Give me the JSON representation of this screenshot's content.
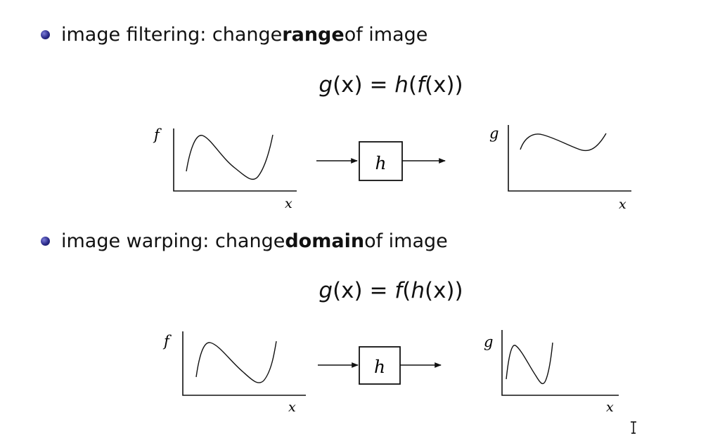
{
  "sections": [
    {
      "bullet": {
        "lead": "image filtering: change ",
        "bold": "range",
        "tail": " of image"
      },
      "equation": {
        "lhs_fn": "g",
        "lhs_arg": "(x)",
        "eq": " = ",
        "outer": "h",
        "open1": "(",
        "inner": "f",
        "open2": "(x))"
      },
      "input_plot": {
        "ylabel": "f",
        "xlabel": "x"
      },
      "box_label": "h",
      "output_plot": {
        "ylabel": "g",
        "xlabel": "x"
      }
    },
    {
      "bullet": {
        "lead": "image warping: change ",
        "bold": "domain",
        "tail": " of image"
      },
      "equation": {
        "lhs_fn": "g",
        "lhs_arg": "(x)",
        "eq": " = ",
        "outer": "f",
        "open1": "(",
        "inner": "h",
        "open2": "(x))"
      },
      "input_plot": {
        "ylabel": "f",
        "xlabel": "x"
      },
      "box_label": "h",
      "output_plot": {
        "ylabel": "g",
        "xlabel": "x"
      }
    }
  ],
  "cursor_icon": "text-cursor-icon"
}
